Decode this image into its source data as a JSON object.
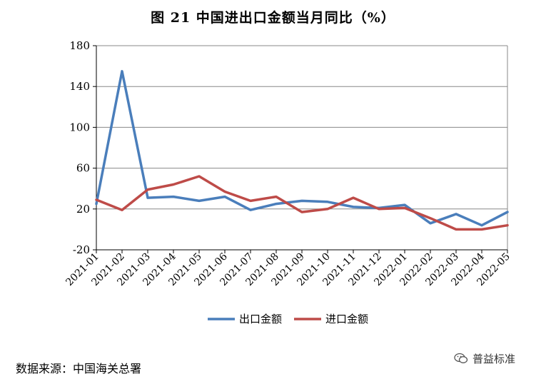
{
  "chart_data": {
    "type": "line",
    "title": "图 21  中国进出口金额当月同比（%）",
    "categories": [
      "2021-01",
      "2021-02",
      "2021-03",
      "2021-04",
      "2021-05",
      "2021-06",
      "2021-07",
      "2021-08",
      "2021-09",
      "2021-10",
      "2021-11",
      "2021-12",
      "2022-01",
      "2022-02",
      "2022-03",
      "2022-04",
      "2022-05"
    ],
    "series": [
      {
        "name": "出口金额",
        "color": "#4a7ebb",
        "values": [
          25,
          155,
          31,
          32,
          28,
          32,
          19,
          25,
          28,
          27,
          22,
          21,
          24,
          6,
          15,
          4,
          17
        ]
      },
      {
        "name": "进口金额",
        "color": "#be4b48",
        "values": [
          29,
          19,
          39,
          44,
          52,
          37,
          28,
          32,
          17,
          20,
          31,
          20,
          21,
          11,
          0,
          0,
          4
        ]
      }
    ],
    "ylim": [
      -20,
      180
    ],
    "yticks": [
      -20,
      20,
      60,
      100,
      140,
      180
    ],
    "grid": true,
    "legend": "bottom-center"
  },
  "source_note": "数据来源：中国海关总署",
  "watermark": {
    "text": "普益标准",
    "icon": "wechat-icon"
  }
}
